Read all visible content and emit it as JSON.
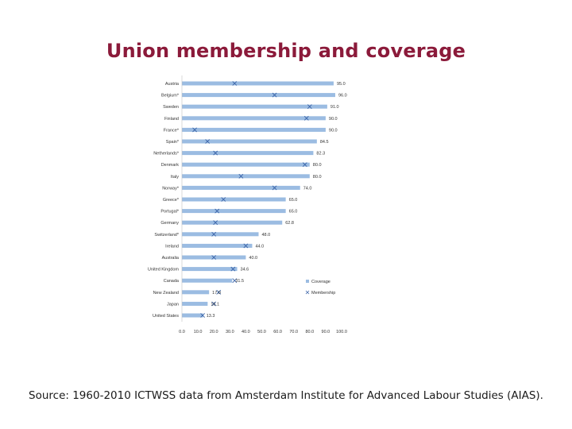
{
  "slide": {
    "title": "Union membership and coverage",
    "source": "Source: 1960-2010 ICTWSS data from Amsterdam Institute for Advanced Labour Studies (AIAS)."
  },
  "colors": {
    "title": "#8b1a3a",
    "bar": "#9bbce2",
    "membership_marker": "#3b64a8"
  },
  "chart_data": {
    "type": "bar",
    "orientation": "horizontal",
    "categories": [
      "Austria",
      "Belgium*",
      "Sweden",
      "Finland",
      "France*",
      "Spain*",
      "Netherlands*",
      "Denmark",
      "Italy",
      "Norway*",
      "Greece*",
      "Portugal*",
      "Germany",
      "Switzerland*",
      "Ireland",
      "Australia",
      "United Kingdom",
      "Canada",
      "New Zealand",
      "Japan",
      "United States"
    ],
    "series": [
      {
        "name": "Coverage",
        "mark": "bar",
        "values": [
          95.0,
          96.0,
          91.0,
          90.0,
          90.0,
          84.5,
          82.3,
          80.0,
          80.0,
          74.0,
          65.0,
          65.0,
          62.8,
          48.0,
          44.0,
          40.0,
          34.6,
          31.5,
          17.0,
          16.1,
          13.3
        ]
      },
      {
        "name": "Membership",
        "mark": "x",
        "values": [
          33,
          58,
          80,
          78,
          8,
          16,
          21,
          77,
          37,
          58,
          26,
          22,
          21,
          20,
          40,
          20,
          32,
          33,
          23,
          20,
          13
        ]
      }
    ],
    "value_labels": [
      "95.0",
      "96.0",
      "91.0",
      "90.0",
      "90.0",
      "84.5",
      "82.3",
      "80.0",
      "80.0",
      "74.0",
      "65.0",
      "65.0",
      "62.8",
      "48.0",
      "44.0",
      "40.0",
      "34.6",
      "31.5",
      "17.0",
      "16.1",
      "13.3"
    ],
    "xlim": [
      0,
      100
    ],
    "xticks": [
      "0.0",
      "10.0",
      "20.0",
      "30.0",
      "40.0",
      "50.0",
      "60.0",
      "70.0",
      "80.0",
      "90.0",
      "100.0"
    ],
    "legend": {
      "position": "bottom-right",
      "entries": [
        "Coverage",
        "Membership"
      ]
    },
    "grid": false
  }
}
